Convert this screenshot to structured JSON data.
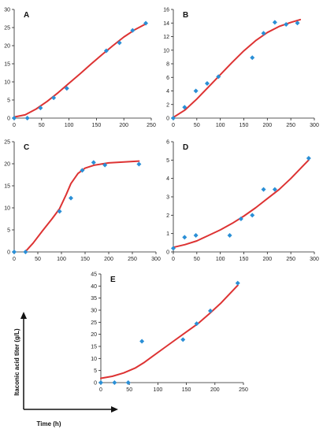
{
  "figure": {
    "ylabel": "Itaconic acid titer (g/L)",
    "xlabel": "Time (h)",
    "series_color": "#dd3333",
    "marker_color": "#2a8fd6",
    "axis_color": "#222222"
  },
  "chart_data": [
    {
      "panel": "A",
      "type": "scatter",
      "xlim": [
        0,
        250
      ],
      "ylim": [
        0,
        30
      ],
      "xticks": [
        0,
        50,
        100,
        150,
        200,
        250
      ],
      "yticks": [
        0,
        5,
        10,
        15,
        20,
        25,
        30
      ],
      "points": {
        "x": [
          0,
          24,
          48,
          72,
          96,
          168,
          192,
          216,
          240
        ],
        "y": [
          0,
          0,
          2.8,
          5.6,
          8.2,
          18.6,
          20.8,
          24.2,
          26.2
        ]
      },
      "fit": {
        "x": [
          0,
          20,
          40,
          60,
          80,
          100,
          120,
          140,
          160,
          180,
          200,
          220,
          240
        ],
        "y": [
          0.3,
          0.9,
          2.5,
          4.6,
          7.0,
          9.6,
          12.2,
          14.9,
          17.5,
          20.0,
          22.4,
          24.4,
          26.0
        ]
      }
    },
    {
      "panel": "B",
      "type": "scatter",
      "xlim": [
        0,
        300
      ],
      "ylim": [
        0,
        16
      ],
      "xticks": [
        0,
        50,
        100,
        150,
        200,
        250,
        300
      ],
      "yticks": [
        0,
        2,
        4,
        6,
        8,
        10,
        12,
        14,
        16
      ],
      "points": {
        "x": [
          0,
          24,
          48,
          72,
          96,
          168,
          192,
          216,
          240,
          264
        ],
        "y": [
          0,
          1.6,
          4.0,
          5.1,
          6.1,
          8.9,
          12.5,
          14.1,
          13.8,
          14.0
        ]
      },
      "fit": {
        "x": [
          0,
          25,
          50,
          75,
          100,
          125,
          150,
          175,
          200,
          225,
          250,
          270
        ],
        "y": [
          0.1,
          1.2,
          2.8,
          4.6,
          6.4,
          8.2,
          9.9,
          11.4,
          12.6,
          13.5,
          14.1,
          14.5
        ]
      }
    },
    {
      "panel": "C",
      "type": "scatter",
      "xlim": [
        0,
        300
      ],
      "ylim": [
        0,
        25
      ],
      "xticks": [
        0,
        50,
        100,
        150,
        200,
        250,
        300
      ],
      "yticks": [
        0,
        5,
        10,
        15,
        20,
        25
      ],
      "points": {
        "x": [
          0,
          24,
          96,
          120,
          144,
          168,
          192,
          264
        ],
        "y": [
          0,
          0,
          9.2,
          12.2,
          18.5,
          20.3,
          19.7,
          19.9
        ]
      },
      "fit": {
        "x": [
          24,
          40,
          60,
          80,
          96,
          110,
          120,
          135,
          150,
          170,
          200,
          264
        ],
        "y": [
          0.1,
          2.0,
          4.8,
          7.5,
          9.8,
          13.0,
          15.5,
          17.8,
          19.0,
          19.7,
          20.2,
          20.6
        ]
      }
    },
    {
      "panel": "D",
      "type": "scatter",
      "xlim": [
        0,
        300
      ],
      "ylim": [
        0,
        6
      ],
      "xticks": [
        0,
        50,
        100,
        150,
        200,
        250,
        300
      ],
      "yticks": [
        0,
        1,
        2,
        3,
        4,
        5,
        6
      ],
      "points": {
        "x": [
          0,
          24,
          48,
          120,
          144,
          168,
          192,
          216,
          288
        ],
        "y": [
          0.2,
          0.8,
          0.9,
          0.9,
          1.8,
          2.0,
          3.4,
          3.4,
          5.1
        ]
      },
      "fit": {
        "x": [
          0,
          25,
          50,
          75,
          100,
          125,
          150,
          175,
          200,
          225,
          250,
          288
        ],
        "y": [
          0.25,
          0.4,
          0.6,
          0.9,
          1.2,
          1.55,
          1.95,
          2.4,
          2.9,
          3.4,
          4.0,
          5.0
        ]
      }
    },
    {
      "panel": "E",
      "type": "scatter",
      "xlim": [
        0,
        250
      ],
      "ylim": [
        0,
        45
      ],
      "xticks": [
        0,
        50,
        100,
        150,
        200,
        250
      ],
      "yticks": [
        0,
        5,
        10,
        15,
        20,
        25,
        30,
        35,
        40,
        45
      ],
      "points": {
        "x": [
          0,
          24,
          48,
          72,
          144,
          168,
          192,
          240
        ],
        "y": [
          0,
          0,
          0,
          17.1,
          17.8,
          24.4,
          29.7,
          41.2
        ]
      },
      "fit": {
        "x": [
          0,
          20,
          40,
          60,
          75,
          90,
          110,
          130,
          150,
          170,
          190,
          210,
          240
        ],
        "y": [
          1.8,
          2.6,
          4.0,
          6.0,
          8.2,
          10.8,
          14.2,
          17.6,
          21.0,
          24.4,
          28.5,
          32.8,
          40.3
        ]
      }
    }
  ]
}
